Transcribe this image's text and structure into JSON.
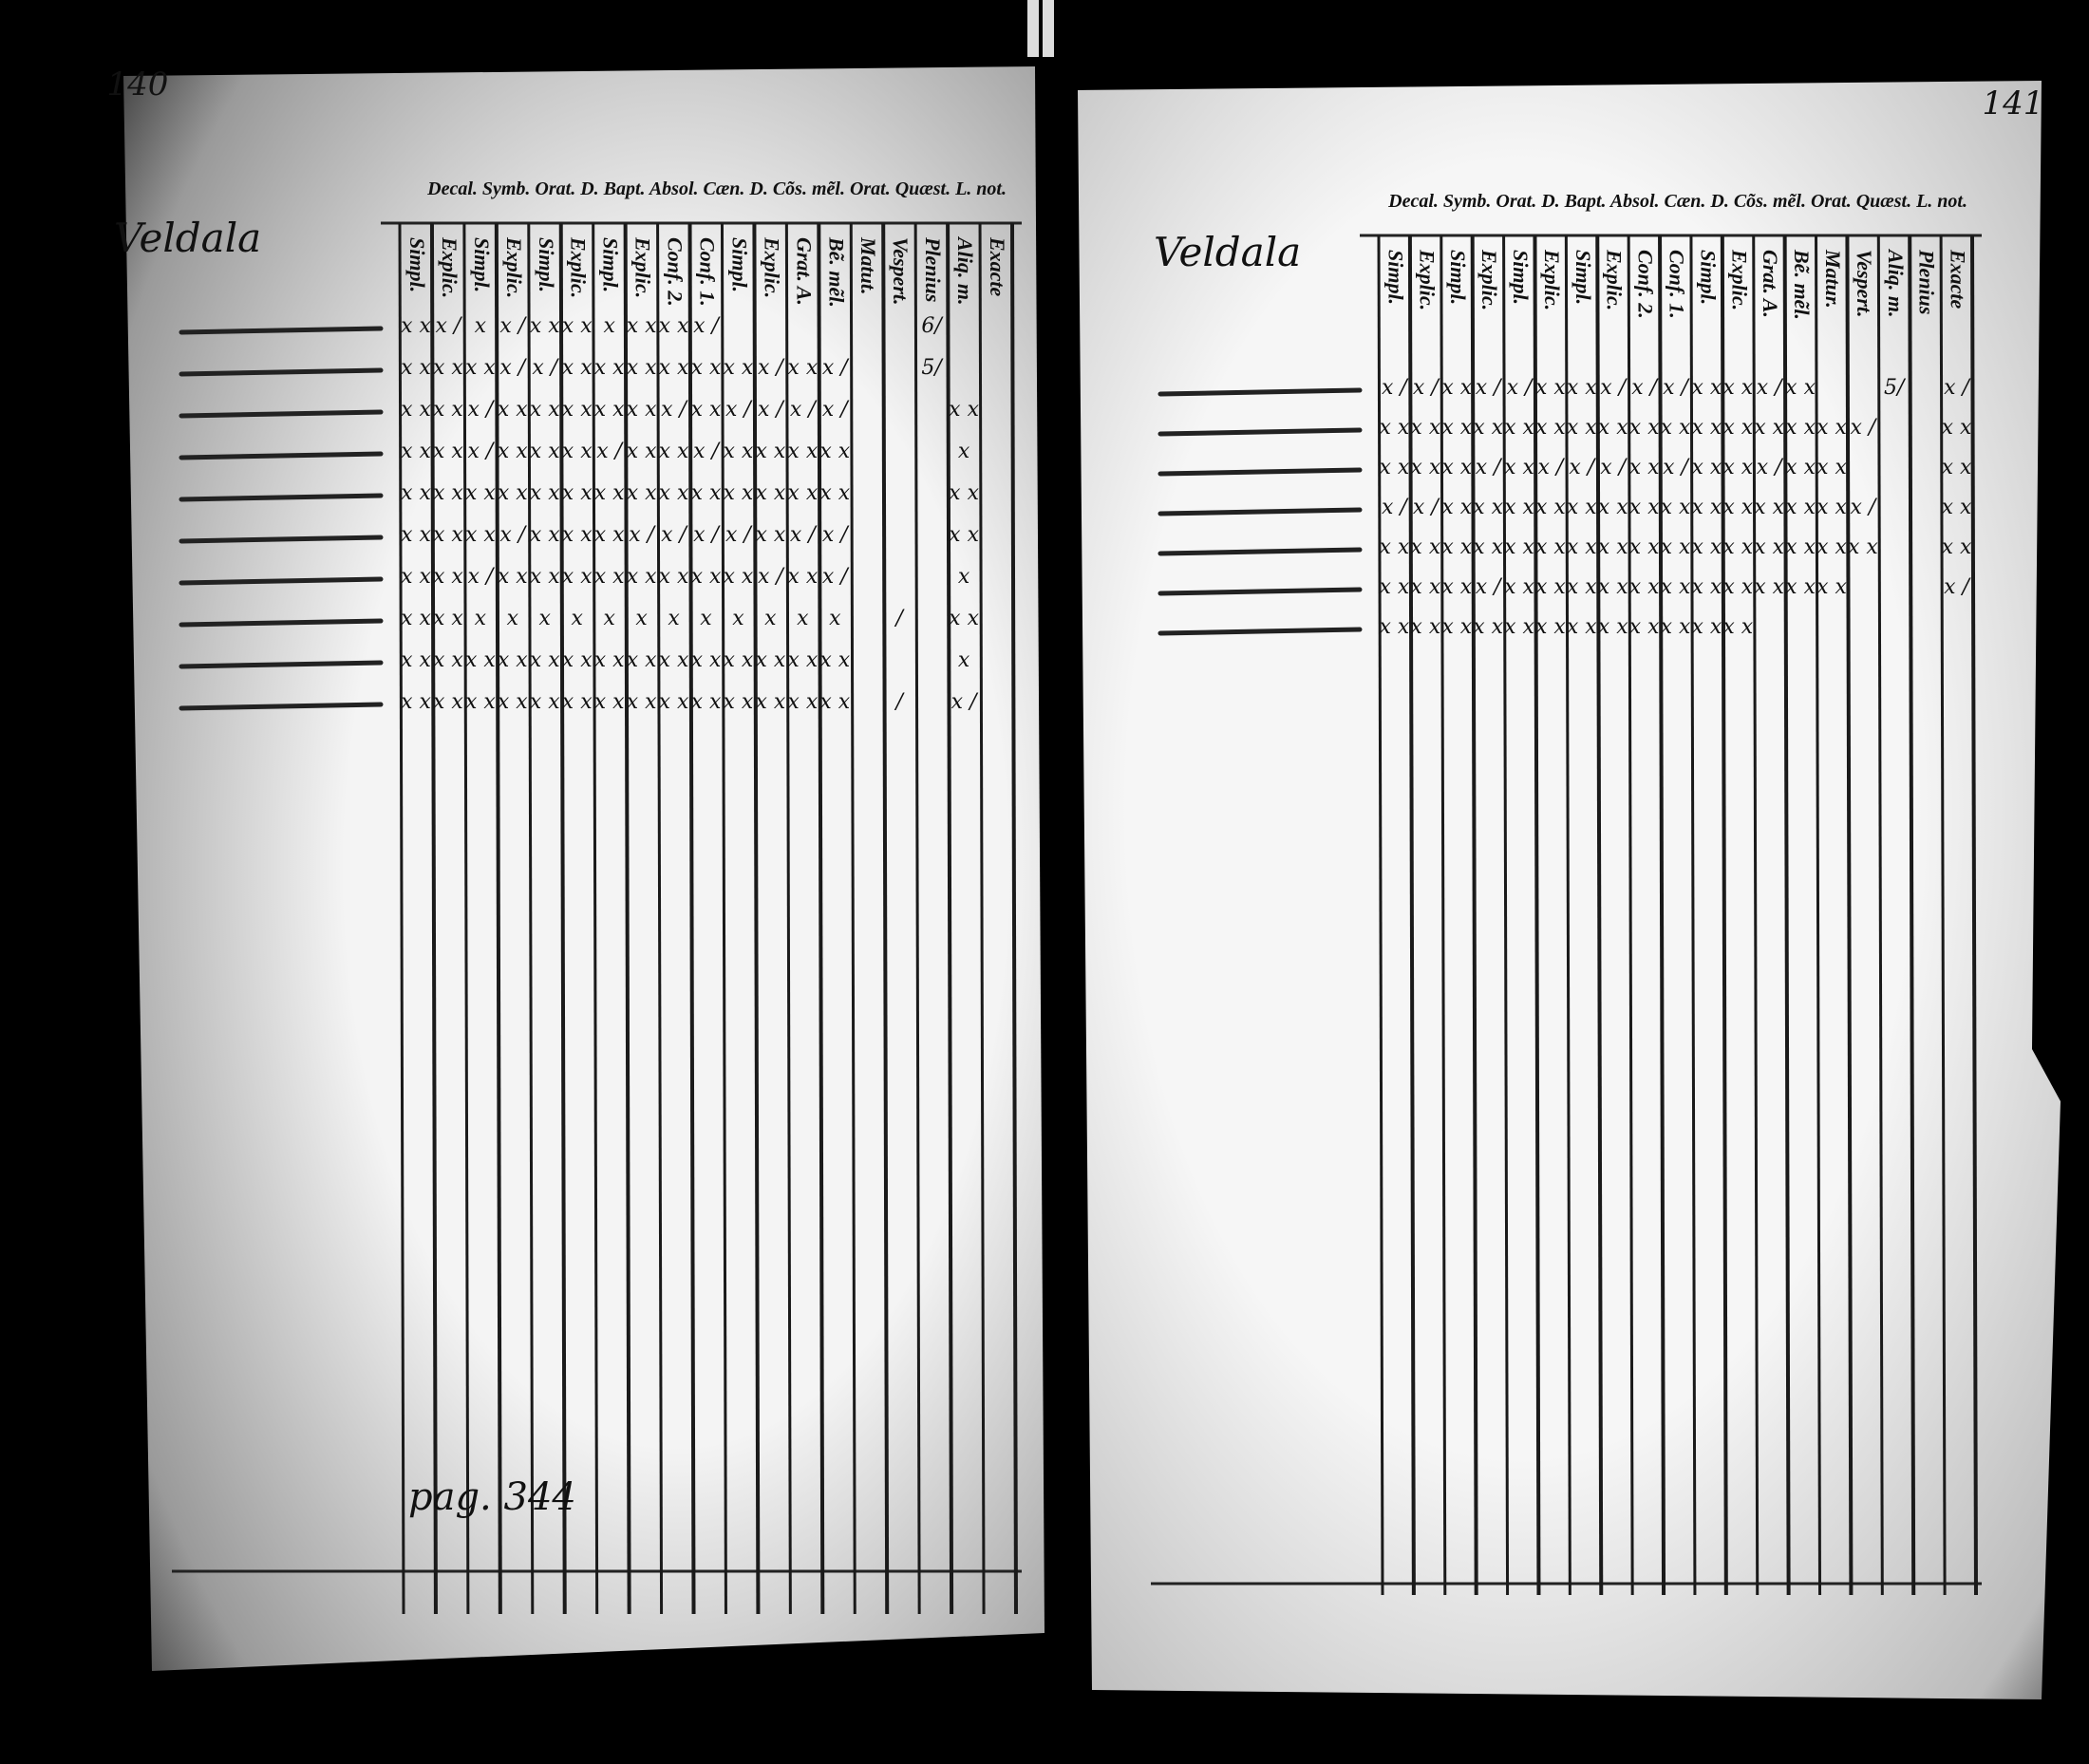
{
  "left_page": {
    "page_number": "140",
    "header_line": "Decal. Symb. Orat. D. Bapt. Absol. Cæn. D. Cõs. mẽl. Orat. Quæst. L. not.",
    "heading": "Veldala",
    "columns": [
      "Simpl.",
      "Explic.",
      "Simpl.",
      "Explic.",
      "Simpl.",
      "Explic.",
      "Simpl.",
      "Explic.",
      "Conf. 2.",
      "Conf. 1.",
      "Simpl.",
      "Explic.",
      "Grat. A.",
      "Bẽ. mẽl.",
      "Matut.",
      "Vespert.",
      "Plenius",
      "Aliq. m.",
      "Exacte"
    ],
    "rows": [
      [
        "x x",
        "x /",
        "x",
        "x /",
        "x x",
        "x x",
        "x",
        "x x",
        "x x",
        "x /",
        null,
        null,
        null,
        null,
        null,
        null,
        "6/",
        null,
        null
      ],
      [
        "x x",
        "x x",
        "x x",
        "x /",
        "x /",
        "x x",
        "x x",
        "x x",
        "x x",
        "x x",
        "x x",
        "x /",
        "x x",
        "x /",
        null,
        null,
        "5/",
        null,
        null
      ],
      [
        "x x",
        "x x",
        "x /",
        "x x",
        "x x",
        "x x",
        "x x",
        "x x",
        "x /",
        "x x",
        "x /",
        "x /",
        "x /",
        "x /",
        null,
        null,
        null,
        "x x",
        null
      ],
      [
        "x x",
        "x x",
        "x /",
        "x x",
        "x x",
        "x x",
        "x /",
        "x x",
        "x x",
        "x /",
        "x x",
        "x x",
        "x x",
        "x x",
        null,
        null,
        null,
        "x",
        null
      ],
      [
        "x x",
        "x x",
        "x x",
        "x x",
        "x x",
        "x x",
        "x x",
        "x x",
        "x x",
        "x x",
        "x x",
        "x x",
        "x x",
        "x x",
        null,
        null,
        null,
        "x x",
        null
      ],
      [
        "x x",
        "x x",
        "x x",
        "x /",
        "x x",
        "x x",
        "x x",
        "x /",
        "x /",
        "x /",
        "x /",
        "x x",
        "x /",
        "x /",
        null,
        null,
        null,
        "x x",
        null
      ],
      [
        "x x",
        "x x",
        "x /",
        "x x",
        "x x",
        "x x",
        "x x",
        "x x",
        "x x",
        "x x",
        "x x",
        "x /",
        "x x",
        "x /",
        null,
        null,
        null,
        "x",
        null
      ],
      [
        "x x",
        "x x",
        "x",
        "x",
        "x",
        "x",
        "x",
        "x",
        "x",
        "x",
        "x",
        "x",
        "x",
        "x",
        null,
        "/",
        null,
        "x x",
        null
      ],
      [
        "x x",
        "x x",
        "x x",
        "x x",
        "x x",
        "x x",
        "x x",
        "x x",
        "x x",
        "x x",
        "x x",
        "x x",
        "x x",
        "x x",
        null,
        null,
        null,
        "x",
        null
      ],
      [
        "x x",
        "x x",
        "x x",
        "x x",
        "x x",
        "x x",
        "x x",
        "x x",
        "x x",
        "x x",
        "x x",
        "x x",
        "x x",
        "x x",
        null,
        "/",
        null,
        "x /",
        null
      ]
    ],
    "footnote": "pag. 344"
  },
  "right_page": {
    "page_number": "141",
    "header_line": "Decal. Symb. Orat. D. Bapt. Absol. Cæn. D. Cõs. mẽl. Orat. Quæst. L. not.",
    "heading": "Veldala",
    "columns": [
      "Simpl.",
      "Explic.",
      "Simpl.",
      "Explic.",
      "Simpl.",
      "Explic.",
      "Simpl.",
      "Explic.",
      "Conf. 2.",
      "Conf. 1.",
      "Simpl.",
      "Explic.",
      "Grat. A.",
      "Bẽ. mẽl.",
      "Matur.",
      "Vespert.",
      "Aliq. m.",
      "Plenius",
      "Exacte"
    ],
    "rows": [
      [
        "x /",
        "x /",
        "x x",
        "x /",
        "x /",
        "x x",
        "x x",
        "x /",
        "x /",
        "x /",
        "x x",
        "x x",
        "x /",
        "x x",
        null,
        null,
        "5/",
        null,
        "x /"
      ],
      [
        "x x",
        "x x",
        "x x",
        "x x",
        "x x",
        "x x",
        "x x",
        "x x",
        "x x",
        "x x",
        "x x",
        "x x",
        "x x",
        "x x",
        "x x",
        "x /",
        null,
        null,
        "x x"
      ],
      [
        "x x",
        "x x",
        "x x",
        "x /",
        "x x",
        "x /",
        "x /",
        "x /",
        "x x",
        "x /",
        "x x",
        "x x",
        "x /",
        "x x",
        "x x",
        null,
        null,
        null,
        "x x"
      ],
      [
        "x /",
        "x /",
        "x x",
        "x x",
        "x x",
        "x x",
        "x x",
        "x x",
        "x x",
        "x x",
        "x x",
        "x x",
        "x x",
        "x x",
        "x x",
        "x /",
        null,
        null,
        "x x"
      ],
      [
        "x x",
        "x x",
        "x x",
        "x x",
        "x x",
        "x x",
        "x x",
        "x x",
        "x x",
        "x x",
        "x x",
        "x x",
        "x x",
        "x x",
        "x x",
        "x x",
        null,
        null,
        "x x"
      ],
      [
        "x x",
        "x x",
        "x x",
        "x /",
        "x x",
        "x x",
        "x x",
        "x x",
        "x x",
        "x x",
        "x x",
        "x x",
        "x x",
        "x x",
        "x x",
        null,
        null,
        null,
        "x /"
      ],
      [
        "x x",
        "x x",
        "x x",
        "x x",
        "x x",
        "x x",
        "x x",
        "x x",
        "x x",
        "x x",
        "x x",
        "x x",
        null,
        null,
        null,
        null,
        null,
        null,
        null
      ]
    ]
  }
}
